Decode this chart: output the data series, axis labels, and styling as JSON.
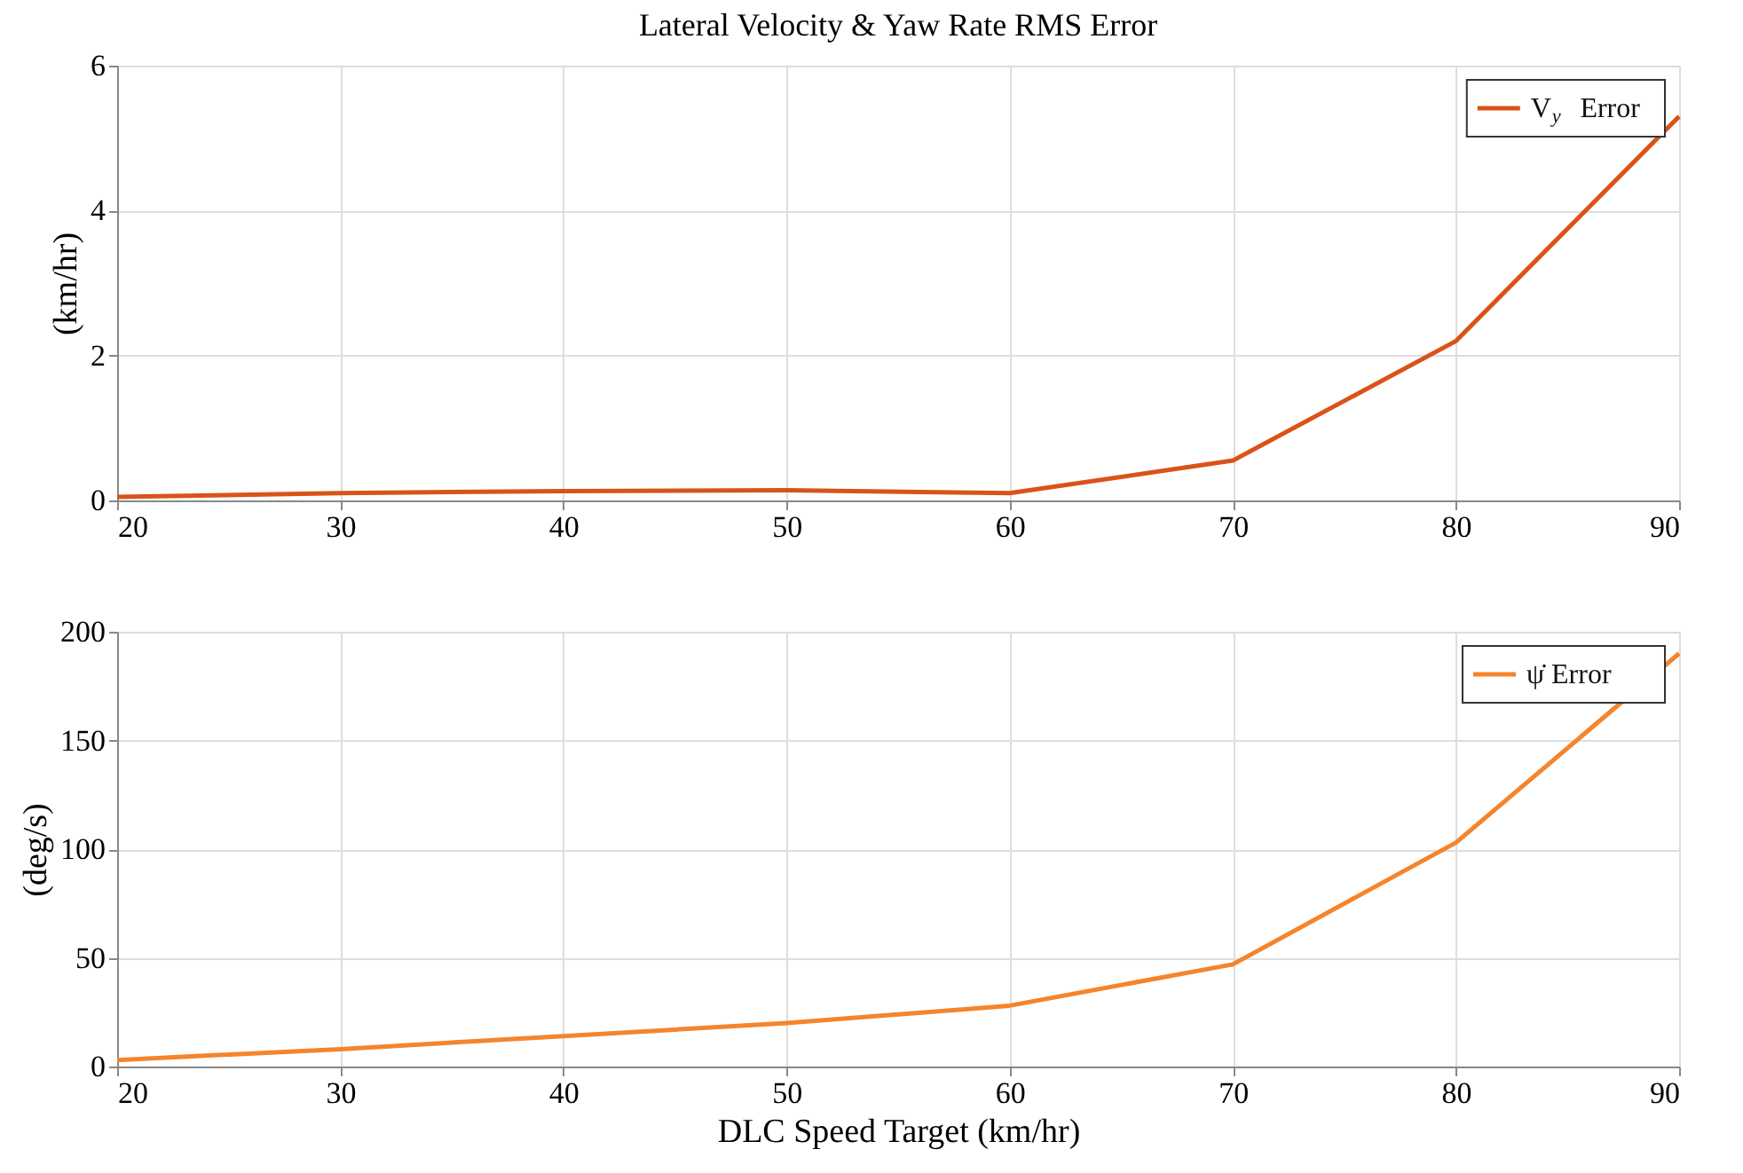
{
  "chart_data": [
    {
      "type": "line",
      "title": "Lateral Velocity & Yaw Rate RMS Error",
      "ylabel": "(km/hr)",
      "x": [
        20,
        30,
        40,
        50,
        60,
        70,
        80,
        90
      ],
      "xlim": [
        20,
        90
      ],
      "xticks": [
        20,
        30,
        40,
        50,
        60,
        70,
        80,
        90
      ],
      "ylim": [
        0,
        6
      ],
      "yticks": [
        0,
        2,
        4,
        6
      ],
      "grid": true,
      "legend": "top right",
      "series": [
        {
          "name": "V$_{y}$ Error",
          "color": "#d95319",
          "values": [
            0.05,
            0.1,
            0.13,
            0.14,
            0.1,
            0.55,
            2.2,
            5.3
          ]
        }
      ]
    },
    {
      "type": "line",
      "xlabel": "DLC Speed Target (km/hr)",
      "ylabel": "(deg/s)",
      "x": [
        20,
        30,
        40,
        50,
        60,
        70,
        80,
        90
      ],
      "xlim": [
        20,
        90
      ],
      "xticks": [
        20,
        30,
        40,
        50,
        60,
        70,
        80,
        90
      ],
      "ylim": [
        0,
        200
      ],
      "yticks": [
        0,
        50,
        100,
        150,
        200
      ],
      "grid": true,
      "legend": "top right",
      "series": [
        {
          "name": "ψ̇ Error",
          "color": "#f5842b",
          "values": [
            3,
            8,
            14,
            20,
            28,
            47,
            103,
            190
          ]
        }
      ]
    }
  ]
}
